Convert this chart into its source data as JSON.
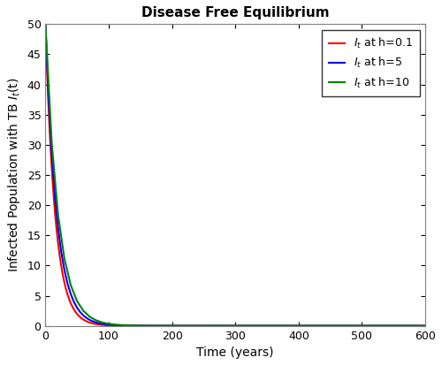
{
  "title": "Disease Free Equilibrium",
  "xlabel": "Time (years)",
  "ylabel": "Infected Population with TB I$_t$(t)",
  "xlim": [
    0,
    600
  ],
  "ylim": [
    0,
    50
  ],
  "yticks": [
    0,
    5,
    10,
    15,
    20,
    25,
    30,
    35,
    40,
    45,
    50
  ],
  "xticks": [
    0,
    100,
    200,
    300,
    400,
    500,
    600
  ],
  "t_max": 600,
  "I0": 50,
  "step_sizes": [
    0.1,
    5,
    10
  ],
  "decay_rate": 0.065,
  "colors": [
    "red",
    "blue",
    "green"
  ],
  "line_width": 1.5,
  "legend_labels_h": [
    "0.1",
    "5",
    "10"
  ],
  "legend_loc": "upper right",
  "title_fontsize": 11,
  "label_fontsize": 10,
  "tick_fontsize": 9,
  "figsize": [
    5.0,
    4.13
  ],
  "dpi": 100,
  "background_color": "#ffffff"
}
